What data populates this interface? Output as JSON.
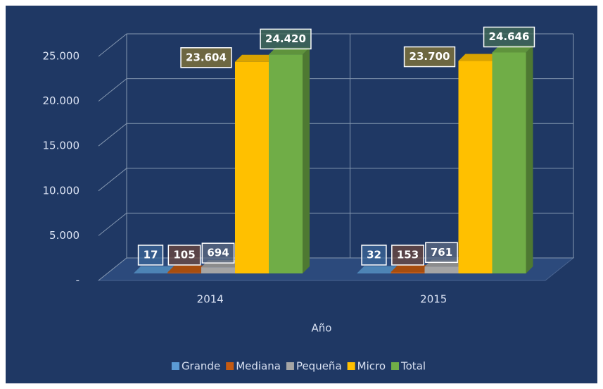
{
  "chart_data": {
    "type": "bar3d",
    "x_label": "Año",
    "categories": [
      "2014",
      "2015"
    ],
    "series": [
      {
        "name": "Grande",
        "color": "#5b9bd5",
        "values": [
          17,
          32
        ],
        "value_labels": [
          "17",
          "32"
        ]
      },
      {
        "name": "Mediana",
        "color": "#c55a11",
        "values": [
          105,
          153
        ],
        "value_labels": [
          "105",
          "153"
        ]
      },
      {
        "name": "Pequeña",
        "color": "#a5a5a5",
        "values": [
          694,
          761
        ],
        "value_labels": [
          "694",
          "761"
        ]
      },
      {
        "name": "Micro",
        "color": "#ffc000",
        "values": [
          23604,
          23700
        ],
        "value_labels": [
          "23.604",
          "23.700"
        ]
      },
      {
        "name": "Total",
        "color": "#70ad47",
        "values": [
          24420,
          24646
        ],
        "value_labels": [
          "24.420",
          "24.646"
        ]
      }
    ],
    "ylim": [
      0,
      25000
    ],
    "yticks": [
      {
        "value": 0,
        "label": "-"
      },
      {
        "value": 5000,
        "label": "5.000"
      },
      {
        "value": 10000,
        "label": "10.000"
      },
      {
        "value": 15000,
        "label": "15.000"
      },
      {
        "value": 20000,
        "label": "20.000"
      },
      {
        "value": 25000,
        "label": "25.000"
      }
    ],
    "grid": true,
    "legend": "bottom"
  }
}
